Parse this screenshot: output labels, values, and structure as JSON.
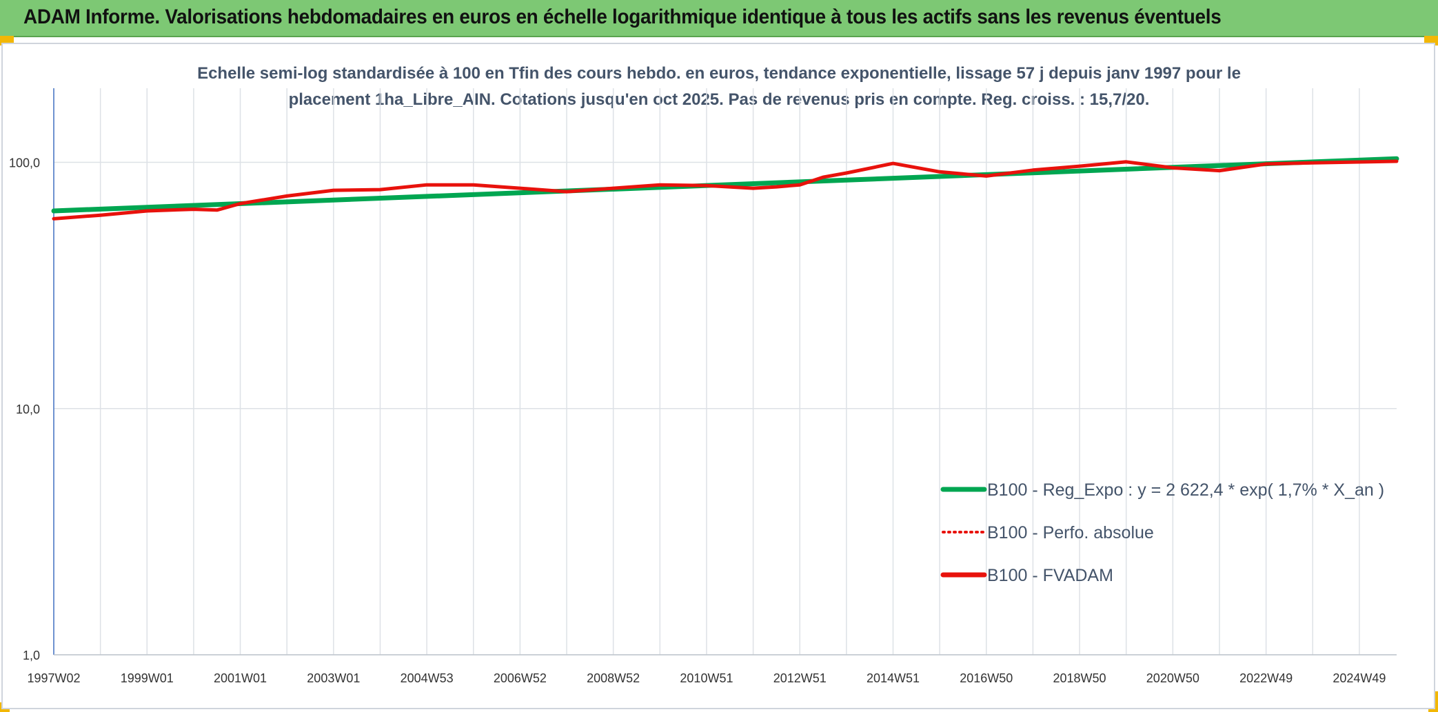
{
  "header": {
    "title": "ADAM Informe. Valorisations hebdomadaires en euros en échelle logarithmique identique à tous les actifs sans les revenus éventuels"
  },
  "colors": {
    "header_bg": "#7dc874",
    "corner": "#f2b705",
    "regression": "#00a651",
    "fvadam": "#e8120c",
    "grid": "#dde1e6",
    "axis": "#4472c4"
  },
  "chart_data": {
    "type": "line",
    "title_lines": [
      "Echelle semi-log standardisée à 100 en Tfin des cours hebdo. en euros, tendance exponentielle, lissage 57 j depuis janv 1997 pour le",
      "placement 1ha_Libre_AIN. Cotations jusqu'en oct 2025. Pas de revenus pris en compte. Reg. croiss. : 15,7/20."
    ],
    "y_scale": "log",
    "ylim": [
      1,
      200
    ],
    "y_ticks": [
      {
        "value": 1,
        "label": "1,0"
      },
      {
        "value": 10,
        "label": "10,0"
      },
      {
        "value": 100,
        "label": "100,0"
      }
    ],
    "xlim": [
      1997.0,
      2025.8
    ],
    "x_ticks": [
      {
        "value": 1997.0,
        "label": "1997W02"
      },
      {
        "value": 1999.0,
        "label": "1999W01"
      },
      {
        "value": 2001.0,
        "label": "2001W01"
      },
      {
        "value": 2003.0,
        "label": "2003W01"
      },
      {
        "value": 2005.0,
        "label": "2004W53"
      },
      {
        "value": 2007.0,
        "label": "2006W52"
      },
      {
        "value": 2009.0,
        "label": "2008W52"
      },
      {
        "value": 2011.0,
        "label": "2010W51"
      },
      {
        "value": 2013.0,
        "label": "2012W51"
      },
      {
        "value": 2015.0,
        "label": "2014W51"
      },
      {
        "value": 2017.0,
        "label": "2016W50"
      },
      {
        "value": 2019.0,
        "label": "2018W50"
      },
      {
        "value": 2021.0,
        "label": "2020W50"
      },
      {
        "value": 2023.0,
        "label": "2022W49"
      },
      {
        "value": 2025.0,
        "label": "2024W49"
      }
    ],
    "grid": true,
    "legend_position": "right-bottom",
    "series": [
      {
        "name": "B100 - Reg_Expo : y = 2 622,4 * exp( 1,7% *  X_an )",
        "style": "solid",
        "color": "#00a651",
        "x": [
          1997.0,
          2025.8
        ],
        "values": [
          63.5,
          103.5
        ]
      },
      {
        "name": "B100 - Perfo. absolue",
        "style": "dotted",
        "color": "#e8120c",
        "x": [
          1997.0,
          1998.0,
          1999.0,
          2000.0,
          2000.5,
          2001.0,
          2002.0,
          2003.0,
          2004.0,
          2005.0,
          2006.0,
          2007.0,
          2008.0,
          2009.0,
          2010.0,
          2011.0,
          2012.0,
          2012.5,
          2013.0,
          2013.5,
          2014.0,
          2015.0,
          2016.0,
          2017.0,
          2018.0,
          2019.0,
          2020.0,
          2021.0,
          2022.0,
          2023.0,
          2024.0,
          2025.8
        ],
        "values": [
          59,
          61,
          63.5,
          64.5,
          64,
          68,
          73,
          77,
          77.5,
          81,
          81,
          78.5,
          76,
          78.5,
          81,
          80.5,
          78.5,
          79.5,
          81,
          87,
          90.5,
          99,
          91.5,
          88,
          93,
          96.5,
          100.5,
          95,
          92.5,
          98.5,
          99.5,
          101
        ]
      },
      {
        "name": "B100 - FVADAM",
        "style": "solid",
        "color": "#e8120c",
        "x": [
          1997.0,
          1998.0,
          1999.0,
          2000.0,
          2000.5,
          2001.0,
          2002.0,
          2003.0,
          2004.0,
          2005.0,
          2006.0,
          2007.0,
          2008.0,
          2009.0,
          2010.0,
          2011.0,
          2012.0,
          2012.5,
          2013.0,
          2013.5,
          2014.0,
          2015.0,
          2016.0,
          2017.0,
          2018.0,
          2019.0,
          2020.0,
          2021.0,
          2022.0,
          2023.0,
          2024.0,
          2025.8
        ],
        "values": [
          59,
          61,
          63.5,
          64.5,
          64,
          68,
          73,
          77,
          77.5,
          81,
          81,
          78.5,
          76,
          78.5,
          81,
          80.5,
          78.5,
          79.5,
          81,
          87,
          90.5,
          99,
          91.5,
          88,
          93,
          96.5,
          100.5,
          95,
          92.5,
          98.5,
          99.5,
          101
        ]
      }
    ]
  }
}
